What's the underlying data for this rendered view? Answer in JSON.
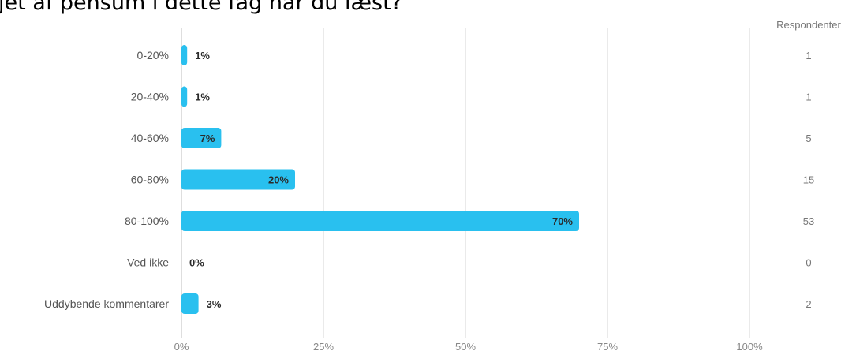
{
  "title": "jet af pensum i dette fag har du læst?",
  "respondents_header": "Respondenter",
  "colors": {
    "bar": "#29c0ef",
    "grid": "#d4d4d4",
    "axis": "#bdbdbd"
  },
  "chart_data": {
    "type": "bar",
    "orientation": "horizontal",
    "title": "jet af pensum i dette fag har du læst?",
    "categories": [
      "0-20%",
      "20-40%",
      "40-60%",
      "60-80%",
      "80-100%",
      "Ved ikke",
      "Uddybende kommentarer"
    ],
    "values": [
      1,
      1,
      7,
      20,
      70,
      0,
      3
    ],
    "value_labels": [
      "1%",
      "1%",
      "7%",
      "20%",
      "70%",
      "0%",
      "3%"
    ],
    "respondents": [
      1,
      1,
      5,
      15,
      53,
      0,
      2
    ],
    "xlim": [
      0,
      100
    ],
    "xticks": [
      0,
      25,
      50,
      75,
      100
    ],
    "xtick_labels": [
      "0%",
      "25%",
      "50%",
      "75%",
      "100%"
    ],
    "grid": true
  }
}
